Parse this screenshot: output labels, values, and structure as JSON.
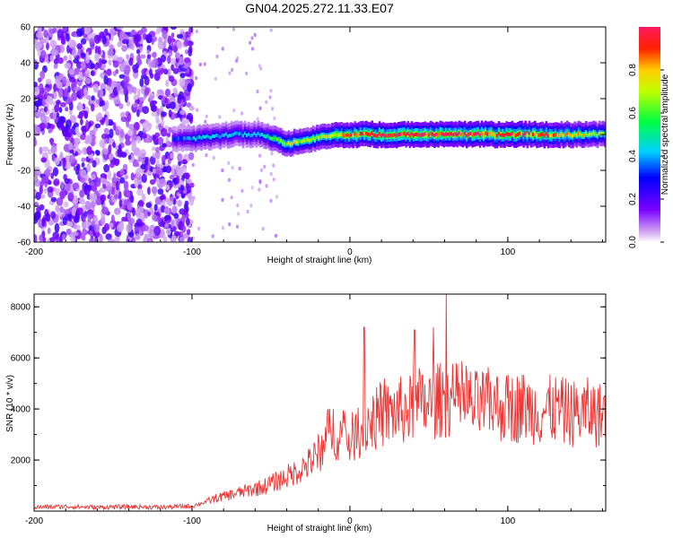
{
  "title": "GN04.2025.272.11.33.E07",
  "chart_data": [
    {
      "type": "heatmap",
      "name": "spectrogram",
      "xlabel": "Height of straight line (km)",
      "ylabel": "Frequency (Hz)",
      "xlim": [
        -200,
        162
      ],
      "ylim": [
        -60,
        60
      ],
      "xticks": [
        -200,
        -100,
        0,
        100
      ],
      "yticks": [
        60,
        40,
        20,
        0,
        -20,
        -40,
        -60
      ],
      "colorbar": {
        "label": "Normalized spectral amplitude",
        "range": [
          0,
          1
        ],
        "ticks": [
          0.0,
          0.2,
          0.4,
          0.6,
          0.8
        ]
      },
      "noise_region": {
        "x_from": -200,
        "x_to": -100,
        "amplitude": 0.2
      },
      "signal_track": [
        {
          "x": -112,
          "freq": -3,
          "amp": 0.3
        },
        {
          "x": -95,
          "freq": -2,
          "amp": 0.45
        },
        {
          "x": -75,
          "freq": 0,
          "amp": 0.4
        },
        {
          "x": -55,
          "freq": 0,
          "amp": 0.45
        },
        {
          "x": -40,
          "freq": -5,
          "amp": 0.7
        },
        {
          "x": -25,
          "freq": -3,
          "amp": 0.65
        },
        {
          "x": -10,
          "freq": 0,
          "amp": 0.75
        },
        {
          "x": 0,
          "freq": 0,
          "amp": 0.9
        },
        {
          "x": 50,
          "freq": 0,
          "amp": 0.95
        },
        {
          "x": 100,
          "freq": 0,
          "amp": 0.95
        },
        {
          "x": 130,
          "freq": 0,
          "amp": 0.85
        },
        {
          "x": 162,
          "freq": 0,
          "amp": 0.65
        }
      ]
    },
    {
      "type": "line",
      "name": "snr",
      "xlabel": "Height of straight line (km)",
      "ylabel": "SNR (10 * v/v)",
      "xlim": [
        -200,
        162
      ],
      "ylim": [
        0,
        8500
      ],
      "xticks": [
        -200,
        -100,
        0,
        100
      ],
      "yticks": [
        2000,
        4000,
        6000,
        8000
      ],
      "color": "#ee3333",
      "series": [
        {
          "name": "SNR",
          "x": [
            -200,
            -180,
            -160,
            -140,
            -120,
            -100,
            -92,
            -85,
            -75,
            -65,
            -55,
            -45,
            -35,
            -25,
            -18,
            -12,
            -8,
            -4,
            0,
            4,
            8,
            10,
            12,
            20,
            30,
            40,
            50,
            60,
            70,
            80,
            90,
            100,
            110,
            120,
            130,
            140,
            150,
            162
          ],
          "values": [
            150,
            180,
            150,
            170,
            150,
            200,
            350,
            500,
            650,
            800,
            950,
            1200,
            1500,
            1900,
            2400,
            3300,
            3000,
            2900,
            2800,
            3000,
            3200,
            3400,
            3500,
            3700,
            3900,
            4000,
            4200,
            4400,
            4300,
            4100,
            4200,
            4000,
            4100,
            3900,
            4000,
            3800,
            3900,
            3700
          ]
        }
      ],
      "peaks": [
        {
          "x": 9,
          "y": 7200
        },
        {
          "x": 41,
          "y": 7100
        },
        {
          "x": 53,
          "y": 7200
        },
        {
          "x": 61,
          "y": 8500
        },
        {
          "x": 44,
          "y": 5600
        }
      ]
    }
  ]
}
